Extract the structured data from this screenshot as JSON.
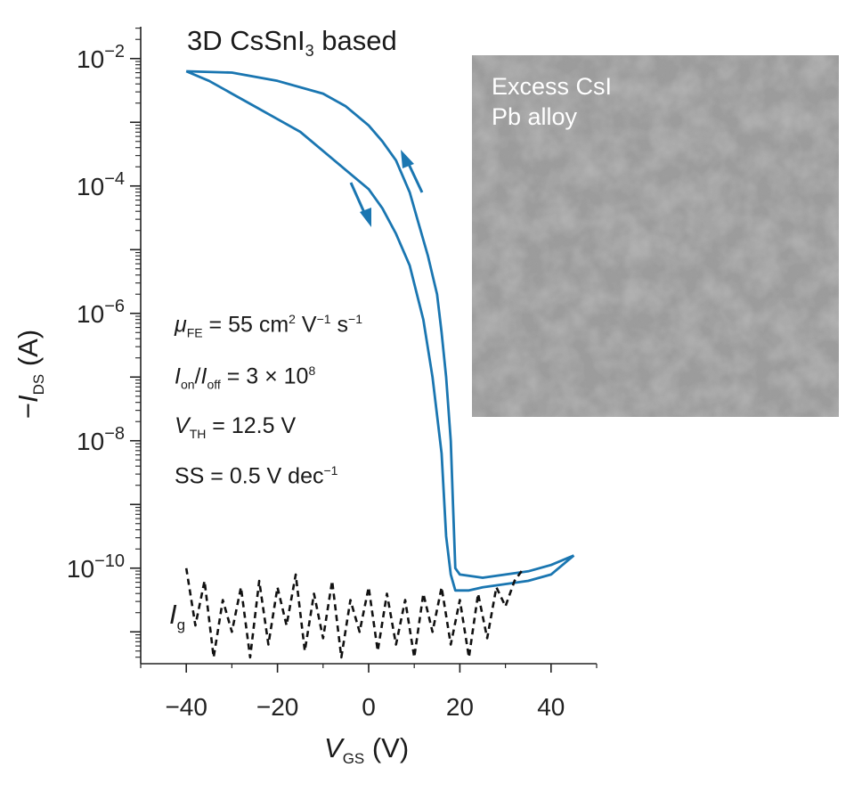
{
  "chart_data": {
    "type": "line",
    "title_main": "3D CsSnI",
    "title_sub": "3",
    "title_rest": " based",
    "xlabel_var": "V",
    "xlabel_sub": "GS",
    "xlabel_unit": " (V)",
    "ylabel_prefix": "−",
    "ylabel_var": "I",
    "ylabel_sub": "DS",
    "ylabel_unit": " (A)",
    "xlim": [
      -50,
      50
    ],
    "ylim_log10": [
      -11.5,
      -1.5
    ],
    "y_scale": "log",
    "x_ticks": [
      {
        "value": -40,
        "label": "−40"
      },
      {
        "value": -20,
        "label": "−20"
      },
      {
        "value": 0,
        "label": "0"
      },
      {
        "value": 20,
        "label": "20"
      },
      {
        "value": 40,
        "label": "40"
      }
    ],
    "y_ticks": [
      {
        "exp": -2,
        "base": "10",
        "sup": "−2"
      },
      {
        "exp": -4,
        "base": "10",
        "sup": "−4"
      },
      {
        "exp": -6,
        "base": "10",
        "sup": "−6"
      },
      {
        "exp": -8,
        "base": "10",
        "sup": "−8"
      },
      {
        "exp": -10,
        "base": "10",
        "sup": "−10"
      }
    ],
    "series": [
      {
        "id": "ids-forward-sweep",
        "color": "#1a76b1",
        "style": "solid",
        "points": [
          [
            -40,
            -2.2
          ],
          [
            -35,
            -2.35
          ],
          [
            -30,
            -2.55
          ],
          [
            -25,
            -2.75
          ],
          [
            -20,
            -2.95
          ],
          [
            -15,
            -3.15
          ],
          [
            -10,
            -3.45
          ],
          [
            -5,
            -3.75
          ],
          [
            0,
            -4.05
          ],
          [
            3,
            -4.35
          ],
          [
            6,
            -4.75
          ],
          [
            9,
            -5.25
          ],
          [
            12,
            -6.1
          ],
          [
            14,
            -7.0
          ],
          [
            16,
            -8.2
          ],
          [
            17,
            -9.5
          ],
          [
            18,
            -10.1
          ],
          [
            19,
            -10.35
          ],
          [
            22,
            -10.35
          ],
          [
            25,
            -10.3
          ],
          [
            30,
            -10.25
          ],
          [
            35,
            -10.2
          ],
          [
            40,
            -10.1
          ],
          [
            45,
            -9.8
          ]
        ]
      },
      {
        "id": "ids-reverse-sweep",
        "color": "#1a76b1",
        "style": "solid",
        "points": [
          [
            45,
            -9.8
          ],
          [
            40,
            -9.95
          ],
          [
            35,
            -10.05
          ],
          [
            30,
            -10.1
          ],
          [
            25,
            -10.15
          ],
          [
            20,
            -10.1
          ],
          [
            19,
            -10.0
          ],
          [
            18.5,
            -9.0
          ],
          [
            18,
            -8.0
          ],
          [
            17,
            -7.0
          ],
          [
            16,
            -6.3
          ],
          [
            15,
            -5.7
          ],
          [
            13,
            -5.1
          ],
          [
            11,
            -4.6
          ],
          [
            9,
            -4.1
          ],
          [
            6,
            -3.6
          ],
          [
            3,
            -3.3
          ],
          [
            0,
            -3.05
          ],
          [
            -5,
            -2.75
          ],
          [
            -10,
            -2.55
          ],
          [
            -20,
            -2.35
          ],
          [
            -30,
            -2.22
          ],
          [
            -40,
            -2.2
          ]
        ]
      },
      {
        "id": "ig-gate-leakage",
        "color": "#111111",
        "style": "dashed",
        "points": [
          [
            -40,
            -10.0
          ],
          [
            -38,
            -10.9
          ],
          [
            -36,
            -10.2
          ],
          [
            -34,
            -11.4
          ],
          [
            -32,
            -10.5
          ],
          [
            -30,
            -11.0
          ],
          [
            -28,
            -10.3
          ],
          [
            -26,
            -11.4
          ],
          [
            -24,
            -10.2
          ],
          [
            -22,
            -11.2
          ],
          [
            -20,
            -10.3
          ],
          [
            -18,
            -10.9
          ],
          [
            -16,
            -10.1
          ],
          [
            -14,
            -11.3
          ],
          [
            -12,
            -10.4
          ],
          [
            -10,
            -11.1
          ],
          [
            -8,
            -10.2
          ],
          [
            -6,
            -11.4
          ],
          [
            -4,
            -10.5
          ],
          [
            -2,
            -11.0
          ],
          [
            0,
            -10.3
          ],
          [
            2,
            -11.3
          ],
          [
            4,
            -10.4
          ],
          [
            6,
            -11.2
          ],
          [
            8,
            -10.5
          ],
          [
            10,
            -11.4
          ],
          [
            12,
            -10.4
          ],
          [
            14,
            -11.0
          ],
          [
            16,
            -10.3
          ],
          [
            18,
            -11.2
          ],
          [
            20,
            -10.5
          ],
          [
            22,
            -11.4
          ],
          [
            24,
            -10.4
          ],
          [
            26,
            -11.1
          ],
          [
            28,
            -10.3
          ],
          [
            30,
            -10.6
          ],
          [
            32,
            -10.2
          ],
          [
            34,
            -10.0
          ]
        ]
      }
    ],
    "annotations": {
      "ig_label": "I",
      "ig_sub": "g",
      "mobility": {
        "var": "μ",
        "sub": "FE",
        "text": " = 55 cm",
        "s1": "2",
        "mid": " V",
        "s2": "−1",
        "mid2": " s",
        "s3": "−1"
      },
      "onoff": {
        "a": "I",
        "asub": "on",
        "slash": "/",
        "b": "I",
        "bsub": "off",
        "text": " = 3 × 10",
        "sup": "8"
      },
      "vth": {
        "var": "V",
        "sub": "TH",
        "text": " = 12.5 V"
      },
      "ss": {
        "text": "SS = 0.5 V dec",
        "sup": "−1"
      }
    },
    "inset": {
      "line1": "Excess CsI",
      "line2": "Pb alloy"
    }
  }
}
